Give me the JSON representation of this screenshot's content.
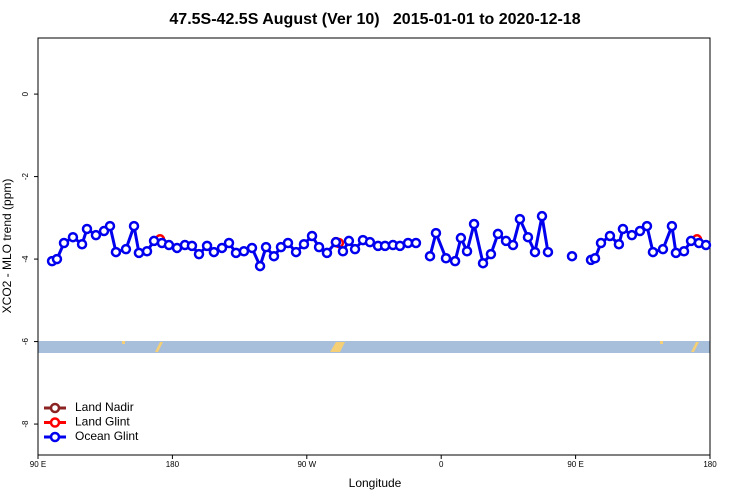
{
  "chart_data": {
    "type": "line",
    "title": "47.5S-42.5S August (Ver 10)   2015-01-01 to 2020-12-18",
    "x_label": "Longitude",
    "y_label": "XCO2 - MLO trend (ppm)",
    "xlim": [
      90,
      540
    ],
    "ylim": [
      -8.75,
      1.36
    ],
    "xticks": [
      {
        "value": 90,
        "label": "90 E"
      },
      180,
      {
        "value": 270,
        "label": "90 W"
      },
      {
        "value": 360,
        "label": "0"
      },
      {
        "value": 450,
        "label": "90 E"
      },
      {
        "value": 540,
        "label": "180"
      }
    ],
    "yticks": [
      0,
      -2,
      -4,
      -6,
      -8
    ],
    "legend": "bottom-left",
    "series": [
      {
        "name": "Land Nadir",
        "color": "#8b2323",
        "x": [],
        "values": []
      },
      {
        "name": "Land Glint",
        "color": "#ff0000",
        "x": [
          171.7,
          null,
          289.5,
          291.5,
          null,
          531.3
        ],
        "values": [
          -3.52,
          null,
          -3.59,
          -3.61,
          null,
          -3.52
        ]
      },
      {
        "name": "Ocean Glint",
        "color": "#0000ee",
        "x": [
          99.4,
          102.7,
          107.4,
          113.4,
          119.5,
          122.8,
          128.8,
          134.2,
          138.2,
          142.2,
          148.9,
          154.3,
          157.6,
          163,
          167.7,
          173,
          177.7,
          183.1,
          188.4,
          193.1,
          197.8,
          203.2,
          207.8,
          213.2,
          217.9,
          222.6,
          227.9,
          233.3,
          238.7,
          242.7,
          248,
          252.7,
          257.4,
          262.8,
          268.1,
          273.5,
          278.2,
          283.5,
          289.5,
          294.2,
          298.2,
          302.3,
          307.6,
          312.3,
          317.7,
          322.4,
          327.7,
          332.4,
          337.8,
          343.1,
          347.8,
          352.5,
          356.5,
          363.2,
          369.3,
          373.2,
          377.3,
          382,
          388,
          393.3,
          398,
          403.4,
          408.1,
          412.7,
          418.1,
          422.8,
          427.5,
          431.5,
          439.5,
          447.6,
          454.3,
          460.3,
          463,
          467,
          473,
          479,
          481.7,
          487.7,
          493.1,
          497.8,
          501.8,
          508.5,
          514.5,
          517.2,
          522.6,
          527.3,
          532.6,
          537.3
        ],
        "values": [
          -4.05,
          -4.0,
          -3.61,
          -3.47,
          -3.64,
          -3.27,
          -3.42,
          -3.32,
          -3.2,
          -3.83,
          -3.76,
          -3.2,
          -3.85,
          -3.81,
          -3.56,
          -3.61,
          -3.66,
          -3.73,
          -3.66,
          -3.68,
          -3.88,
          -3.68,
          -3.83,
          -3.73,
          -3.61,
          -3.85,
          -3.81,
          -3.73,
          -4.17,
          -3.71,
          -3.93,
          -3.71,
          -3.61,
          -3.83,
          -3.64,
          -3.44,
          -3.71,
          -3.85,
          -3.59,
          -3.81,
          -3.56,
          -3.76,
          -3.54,
          -3.59,
          -3.68,
          -3.68,
          -3.66,
          -3.68,
          -3.61,
          -3.61,
          null,
          -3.93,
          -3.37,
          -3.98,
          -4.05,
          -3.49,
          -3.81,
          -3.15,
          -4.1,
          -3.88,
          -3.39,
          -3.56,
          -3.66,
          -3.03,
          -3.47,
          -3.83,
          -2.96,
          -3.83,
          null,
          -3.93,
          null,
          -4.02,
          -3.98,
          -3.61,
          -3.44,
          -3.64,
          -3.27,
          -3.42,
          -3.32,
          -3.2,
          -3.83,
          -3.76,
          -3.2,
          -3.85,
          -3.81,
          -3.56,
          -3.61,
          -3.66
        ]
      }
    ]
  }
}
